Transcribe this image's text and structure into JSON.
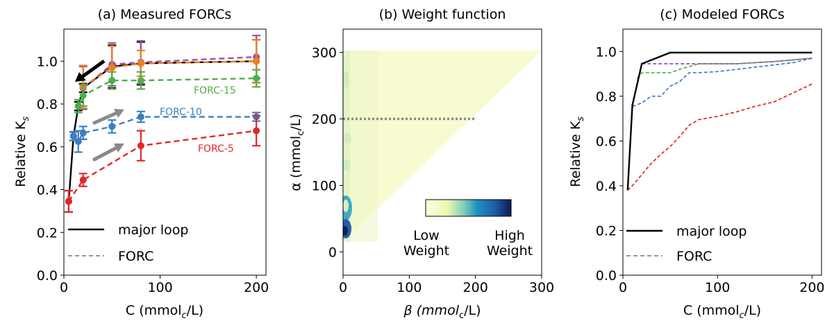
{
  "chart_data": [
    {
      "type": "line",
      "title": "(a) Measured FORCs",
      "xlabel_parts": [
        "C (mmol",
        "c",
        "/L)"
      ],
      "ylabel_parts": [
        "Relative K",
        "s"
      ],
      "xlim": [
        0,
        210
      ],
      "ylim": [
        0.0,
        1.15
      ],
      "xticks": [
        0,
        100,
        200
      ],
      "yticks": [
        0.0,
        0.2,
        0.4,
        0.6,
        0.8,
        1.0
      ],
      "legend": {
        "placement": "bottom-left",
        "entries": [
          "major loop",
          "FORC"
        ]
      },
      "series": [
        {
          "name": "major loop",
          "color": "#000000",
          "dashed": false,
          "x": [
            5,
            10,
            15,
            20,
            50,
            80,
            200
          ],
          "y": [
            0.345,
            0.65,
            0.79,
            0.875,
            0.975,
            0.99,
            1.0
          ],
          "err": [
            0.05,
            0.02,
            0.02,
            0.02,
            0.1,
            0.1,
            0.1
          ]
        },
        {
          "name": "",
          "color": "#9b4fb0",
          "dashed": true,
          "x": [
            20,
            50,
            80,
            200
          ],
          "y": [
            0.875,
            0.985,
            0.995,
            1.02
          ],
          "err": [
            0.1,
            0.1,
            0.1,
            0.1
          ]
        },
        {
          "name": "",
          "color": "#ee8020",
          "dashed": true,
          "x": [
            20,
            50,
            80,
            200
          ],
          "y": [
            0.88,
            0.97,
            0.99,
            1.0
          ],
          "err": [
            0.1,
            0.1,
            0.06,
            0.1
          ]
        },
        {
          "name": "FORC-15",
          "color": "#4caf4c",
          "dashed": true,
          "x": [
            15,
            20,
            50,
            80,
            200
          ],
          "y": [
            0.79,
            0.84,
            0.91,
            0.91,
            0.92
          ],
          "err": [
            0.03,
            0.05,
            0.04,
            0.04,
            0.04
          ]
        },
        {
          "name": "FORC-10",
          "color": "#3b7fc0",
          "dashed": true,
          "x": [
            10,
            15,
            20,
            50,
            80,
            200
          ],
          "y": [
            0.65,
            0.625,
            0.665,
            0.695,
            0.74,
            0.74
          ],
          "err": [
            0.02,
            0.05,
            0.03,
            0.03,
            0.025,
            0.02
          ]
        },
        {
          "name": "FORC-5",
          "color": "#e02828",
          "dashed": true,
          "x": [
            5,
            20,
            80,
            200
          ],
          "y": [
            0.345,
            0.445,
            0.605,
            0.675
          ],
          "err": [
            0.05,
            0.03,
            0.07,
            0.07
          ]
        }
      ],
      "annotations": [
        "FORC-15",
        "FORC-10",
        "FORC-5"
      ]
    },
    {
      "type": "heatmap",
      "title": "(b) Weight function",
      "xlabel_parts": [
        "β (mmol",
        "c",
        "/L)"
      ],
      "ylabel_parts": [
        "α (mmol",
        "c",
        "/L)"
      ],
      "xlim": [
        0,
        300
      ],
      "ylim": [
        -35,
        335
      ],
      "xticks": [
        0,
        100,
        200,
        300
      ],
      "yticks": [
        0,
        100,
        200,
        300
      ],
      "reference_line": {
        "y": 200,
        "x_from": 0,
        "x_to": 200
      },
      "colorbar": {
        "low": "Low\nWeight",
        "high": "High\nWeight",
        "low_lines": [
          "Low",
          "Weight"
        ],
        "high_lines": [
          "High",
          "Weight"
        ]
      }
    },
    {
      "type": "line",
      "title": "(c) Modeled FORCs",
      "xlabel_parts": [
        "C (mmol",
        "c",
        "/L)"
      ],
      "ylabel_parts": [
        "Relative K",
        "s"
      ],
      "xlim": [
        0,
        210
      ],
      "ylim": [
        0.0,
        1.1
      ],
      "xticks": [
        0,
        100,
        200
      ],
      "yticks": [
        0.0,
        0.2,
        0.4,
        0.6,
        0.8,
        1.0
      ],
      "legend": {
        "placement": "bottom-left",
        "entries": [
          "major loop",
          "FORC"
        ]
      },
      "series": [
        {
          "name": "major loop",
          "color": "#000000",
          "dashed": false,
          "x": [
            5,
            10,
            20,
            50,
            80,
            120,
            160,
            200
          ],
          "y": [
            0.38,
            0.76,
            0.945,
            0.995,
            0.995,
            0.995,
            0.995,
            0.995
          ]
        },
        {
          "name": "",
          "color": "#ee8020",
          "dashed": true,
          "x": [
            50,
            80,
            120,
            160,
            200
          ],
          "y": [
            0.995,
            0.995,
            0.995,
            0.995,
            0.995
          ]
        },
        {
          "name": "",
          "color": "#9b4fb0",
          "dashed": true,
          "x": [
            20,
            50,
            80,
            120,
            160,
            200
          ],
          "y": [
            0.945,
            0.945,
            0.945,
            0.945,
            0.955,
            0.97
          ]
        },
        {
          "name": "",
          "color": "#4caf4c",
          "dashed": true,
          "x": [
            15,
            20,
            30,
            40,
            50,
            60,
            80,
            120,
            160,
            200
          ],
          "y": [
            0.88,
            0.905,
            0.905,
            0.905,
            0.905,
            0.92,
            0.945,
            0.945,
            0.955,
            0.97
          ]
        },
        {
          "name": "",
          "color": "#3b7fc0",
          "dashed": true,
          "x": [
            10,
            20,
            30,
            40,
            50,
            60,
            70,
            80,
            100,
            120,
            140,
            160,
            180,
            200
          ],
          "y": [
            0.755,
            0.77,
            0.8,
            0.8,
            0.845,
            0.865,
            0.905,
            0.905,
            0.91,
            0.92,
            0.93,
            0.94,
            0.95,
            0.97
          ]
        },
        {
          "name": "",
          "color": "#e02828",
          "dashed": true,
          "x": [
            5,
            10,
            20,
            30,
            40,
            50,
            60,
            70,
            80,
            100,
            120,
            140,
            160,
            180,
            200
          ],
          "y": [
            0.38,
            0.4,
            0.45,
            0.5,
            0.54,
            0.575,
            0.62,
            0.67,
            0.695,
            0.71,
            0.73,
            0.755,
            0.775,
            0.815,
            0.855
          ]
        }
      ]
    }
  ]
}
